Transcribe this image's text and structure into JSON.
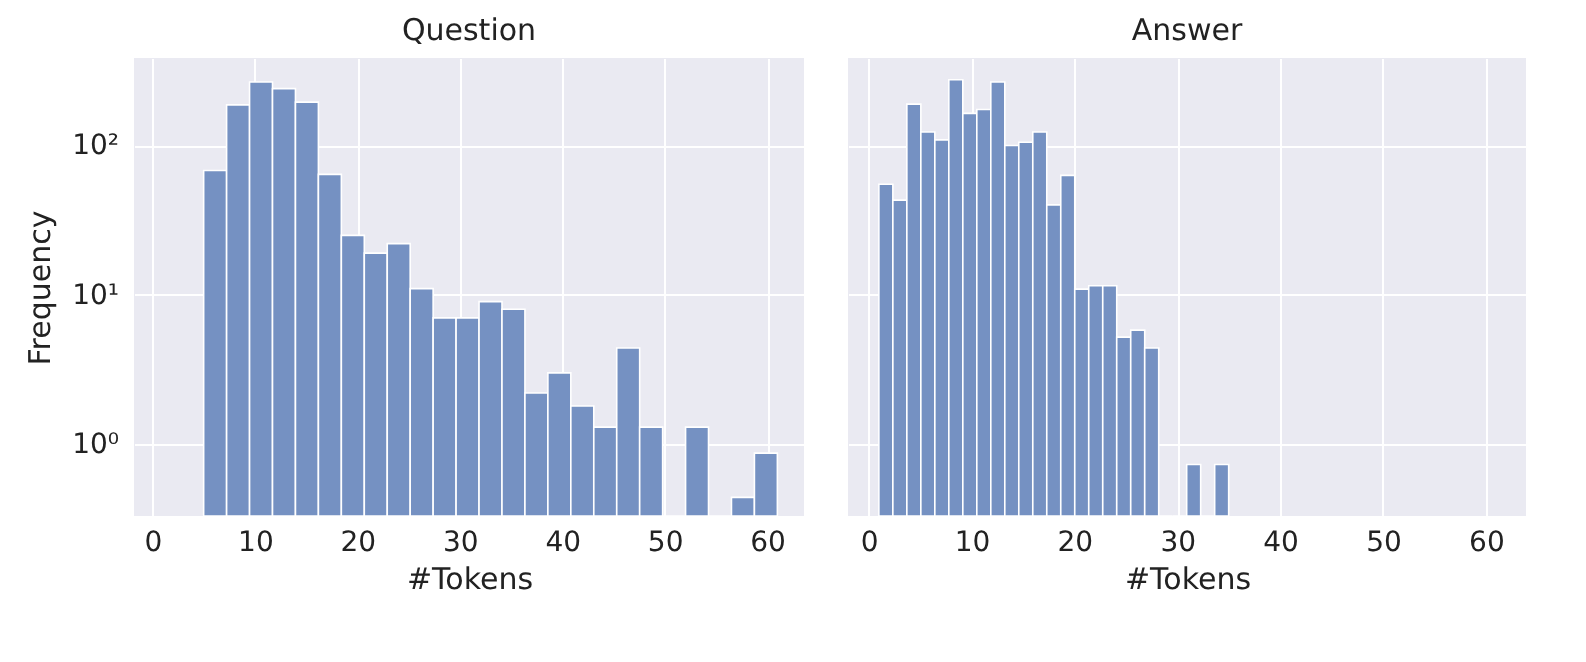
{
  "chart_data": [
    {
      "type": "histogram",
      "title": "Question",
      "xlabel": "#Tokens",
      "ylabel": "Frequency",
      "bins": [
        5,
        7.24,
        9.48,
        11.72,
        13.96,
        16.2,
        18.44,
        20.68,
        22.92,
        25.16,
        27.4,
        29.64,
        31.88,
        34.12,
        36.36,
        38.6,
        40.84,
        43.08,
        45.32,
        47.56,
        49.8,
        52.04,
        54.28,
        56.52,
        58.76,
        61
      ],
      "values": [
        68,
        187,
        266,
        240,
        195,
        64,
        25,
        19,
        22,
        11,
        7,
        7,
        9,
        8,
        2.2,
        3,
        1.8,
        1.3,
        4.4,
        1.3,
        null,
        1.3,
        null,
        0.44,
        0.87
      ],
      "color": "#7591c2",
      "log": "y",
      "xlim": [
        -1.8,
        63.6
      ],
      "ylim": [
        0.33,
        385
      ],
      "xticks": [
        0,
        10,
        20,
        30,
        40,
        50,
        60
      ],
      "yticks": [
        {
          "value": 1,
          "label": "10⁰"
        },
        {
          "value": 10,
          "label": "10¹"
        },
        {
          "value": 100,
          "label": "10²"
        }
      ],
      "grid": true
    },
    {
      "type": "histogram",
      "title": "Answer",
      "xlabel": "#Tokens",
      "bins": [
        1,
        2.36,
        3.72,
        5.08,
        6.44,
        7.8,
        9.16,
        10.52,
        11.88,
        13.24,
        14.6,
        15.96,
        17.32,
        18.68,
        20.04,
        21.4,
        22.76,
        24.12,
        25.48,
        26.84,
        28.2,
        29.56,
        30.92,
        32.28,
        33.64,
        35
      ],
      "values": [
        55,
        43,
        189,
        123,
        109,
        275,
        164,
        174,
        266,
        100,
        105,
        123,
        40,
        63,
        10.9,
        11.5,
        11.5,
        5.2,
        5.8,
        4.4,
        null,
        null,
        0.73,
        null,
        0.73
      ],
      "color": "#7591c2",
      "log": "y",
      "xlim": [
        -2.0,
        63.9
      ],
      "ylim": [
        0.33,
        385
      ],
      "xticks": [
        0,
        10,
        20,
        30,
        40,
        50,
        60
      ],
      "yticks": [
        {
          "value": 1,
          "label": null
        },
        {
          "value": 10,
          "label": null
        },
        {
          "value": 100,
          "label": null
        }
      ],
      "grid": true,
      "tick_labels": "x"
    }
  ]
}
